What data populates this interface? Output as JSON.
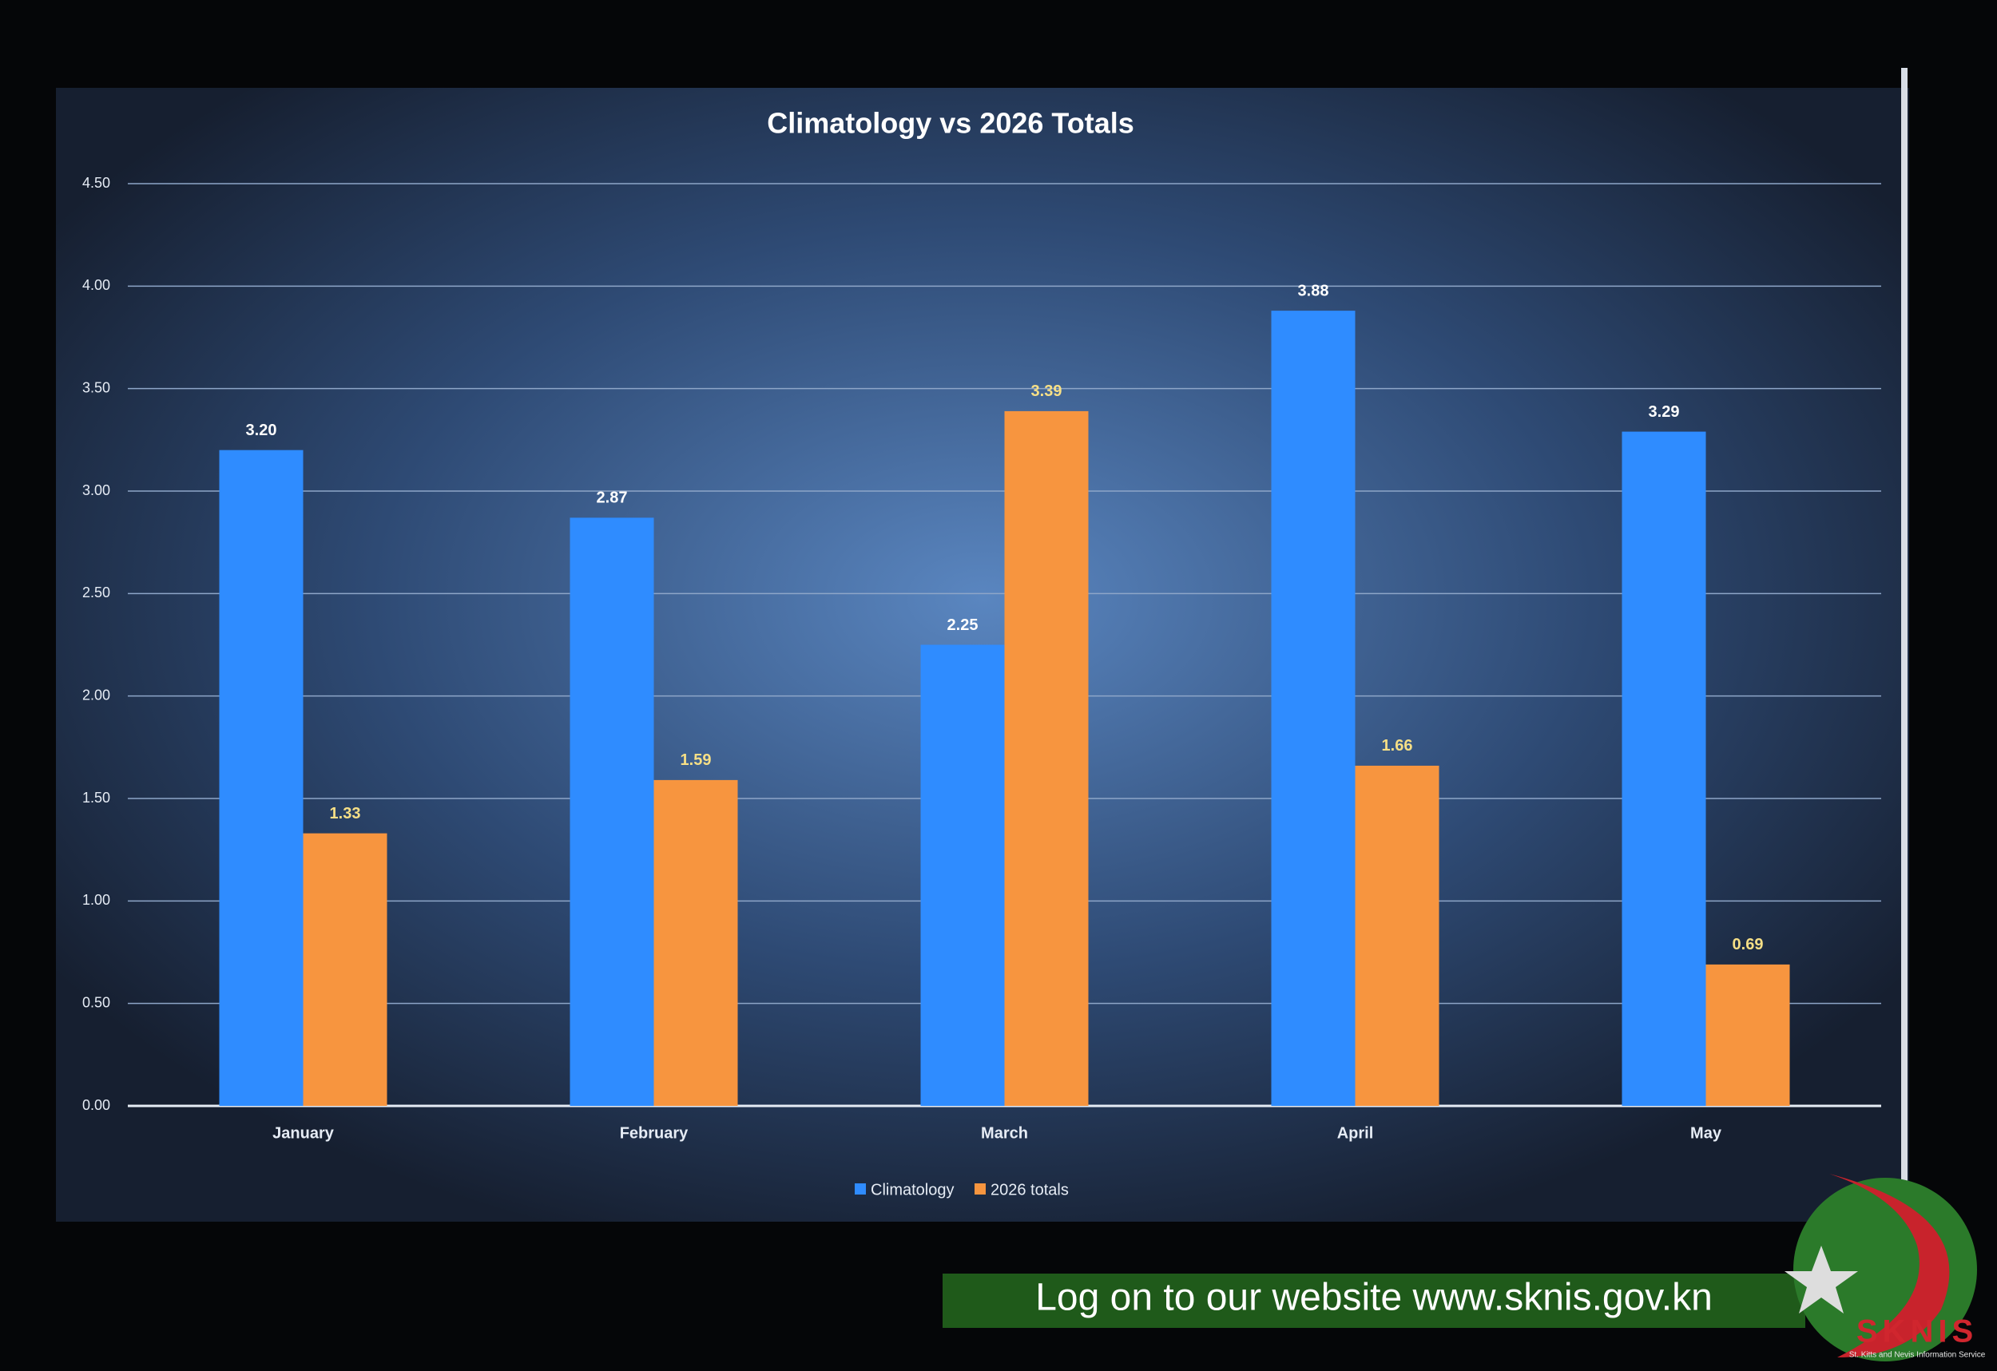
{
  "chart_data": {
    "type": "bar",
    "title": "Climatology vs 2026 Totals",
    "categories": [
      "January",
      "February",
      "March",
      "April",
      "May"
    ],
    "series": [
      {
        "name": "Climatology",
        "color": "#2f8cff",
        "values": [
          3.2,
          2.87,
          2.25,
          3.88,
          3.29
        ],
        "value_labels": [
          "3.20",
          "2.87",
          "2.25",
          "3.88",
          "3.29"
        ]
      },
      {
        "name": "2026 totals",
        "color": "#f7953f",
        "values": [
          1.33,
          1.59,
          3.39,
          1.66,
          0.69
        ],
        "value_labels": [
          "1.33",
          "1.59",
          "3.39",
          "1.66",
          "0.69"
        ]
      }
    ],
    "ylim": [
      0,
      4.5
    ],
    "yticks": [
      {
        "value": 0,
        "label": "0.00"
      },
      {
        "value": 0.5,
        "label": "0.50"
      },
      {
        "value": 1,
        "label": "1.00"
      },
      {
        "value": 1.5,
        "label": "1.50"
      },
      {
        "value": 2,
        "label": "2.00"
      },
      {
        "value": 2.5,
        "label": "2.50"
      },
      {
        "value": 3,
        "label": "3.00"
      },
      {
        "value": 3.5,
        "label": "3.50"
      },
      {
        "value": 4,
        "label": "4.00"
      },
      {
        "value": 4.5,
        "label": "4.50"
      }
    ],
    "grid": true,
    "legend": "bottom"
  },
  "banner": {
    "text": "Log on to our website www.sknis.gov.kn"
  },
  "logo": {
    "name": "SKNIS",
    "subtitle": "St. Kitts and Nevis Information Service"
  }
}
